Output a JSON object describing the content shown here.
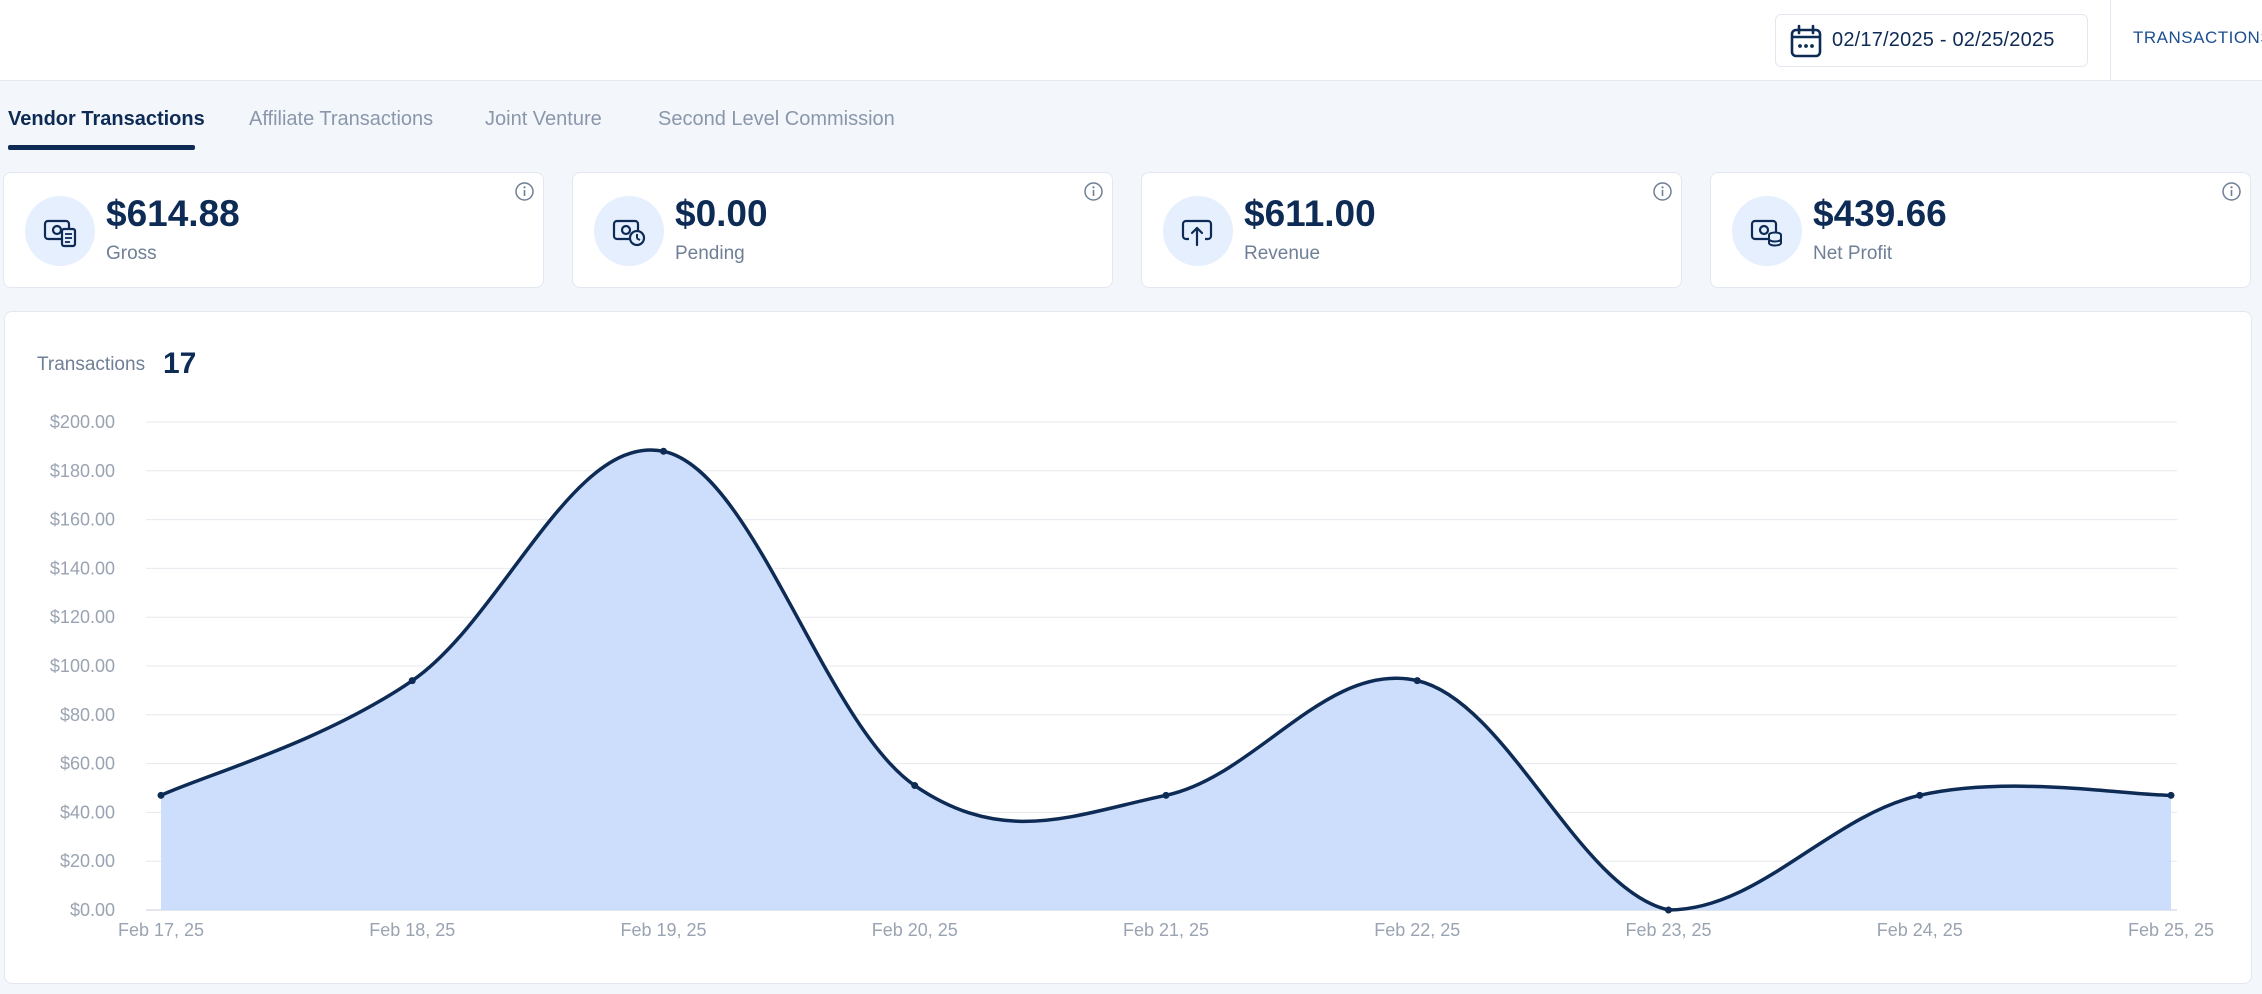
{
  "header": {
    "date_range": "02/17/2025 - 02/25/2025",
    "transactions_link": "TRANSACTIONS"
  },
  "tabs": [
    {
      "label": "Vendor Transactions",
      "active": true
    },
    {
      "label": "Affiliate Transactions",
      "active": false
    },
    {
      "label": "Joint Venture",
      "active": false
    },
    {
      "label": "Second Level Commission",
      "active": false
    }
  ],
  "stats": [
    {
      "value": "$614.88",
      "label": "Gross",
      "icon": "gross-icon"
    },
    {
      "value": "$0.00",
      "label": "Pending",
      "icon": "pending-icon"
    },
    {
      "value": "$611.00",
      "label": "Revenue",
      "icon": "revenue-icon"
    },
    {
      "value": "$439.66",
      "label": "Net Profit",
      "icon": "net-profit-icon"
    }
  ],
  "chart": {
    "title": "Transactions",
    "count": "17"
  },
  "colors": {
    "primary": "#0d2b55",
    "area_fill": "#c9dcfb",
    "grid": "#e5e8ee",
    "axis_text": "#9aa3b1"
  },
  "chart_data": {
    "type": "area",
    "x": [
      "Feb 17, 25",
      "Feb 18, 25",
      "Feb 19, 25",
      "Feb 20, 25",
      "Feb 21, 25",
      "Feb 22, 25",
      "Feb 23, 25",
      "Feb 24, 25",
      "Feb 25, 25"
    ],
    "values": [
      47,
      94,
      188,
      51,
      47,
      94,
      0,
      47,
      47
    ],
    "y_ticks": [
      "$0.00",
      "$20.00",
      "$40.00",
      "$60.00",
      "$80.00",
      "$100.00",
      "$120.00",
      "$140.00",
      "$160.00",
      "$180.00",
      "$200.00"
    ],
    "ylim": [
      0,
      200
    ],
    "grid": true
  }
}
